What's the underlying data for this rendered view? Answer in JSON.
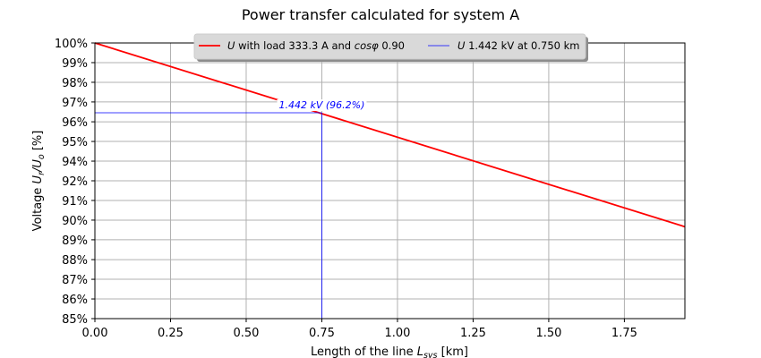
{
  "chart_data": {
    "type": "line",
    "title": "Power transfer calculated for system A",
    "xlabel": "Length of the line L_sys [km]",
    "xlabel_parts": {
      "pre": "Length of the line ",
      "var": "L",
      "sub": "sys",
      "post": " [km]"
    },
    "ylabel": "Voltage U_r/U_o [%]",
    "ylabel_parts": {
      "pre": "Voltage ",
      "var1": "U",
      "sub1": "r",
      "slash": "/",
      "var2": "U",
      "sub2": "o",
      "post": " [%]"
    },
    "xlim": [
      0.0,
      1.95
    ],
    "ylim": [
      85,
      100
    ],
    "grid": true,
    "x_ticks": [
      0.0,
      0.25,
      0.5,
      0.75,
      1.0,
      1.25,
      1.5,
      1.75
    ],
    "x_tick_labels": [
      "0.00",
      "0.25",
      "0.50",
      "0.75",
      "1.00",
      "1.25",
      "1.50",
      "1.75"
    ],
    "y_ticks": [
      100,
      98.93,
      97.86,
      96.79,
      95.71,
      94.64,
      93.57,
      92.5,
      91.43,
      90.36,
      89.29,
      88.21,
      87.14,
      86.07,
      85
    ],
    "y_tick_labels": [
      "100%",
      "99%",
      "98%",
      "97%",
      "96%",
      "95%",
      "94%",
      "92%",
      "91%",
      "90%",
      "89%",
      "88%",
      "87%",
      "86%",
      "85%"
    ],
    "series": [
      {
        "name": "U with load 333.3 A and cosφ 0.90",
        "color": "#ff0000",
        "x": [
          0.0,
          1.95
        ],
        "y": [
          100.0,
          90.0
        ]
      },
      {
        "name": "U 1.442 kV at 0.750 km",
        "color": "#0000ff",
        "type": "crosshair",
        "x": 0.75,
        "y": 96.2
      }
    ],
    "legend": {
      "position": "upper center",
      "entries": [
        {
          "var": "U",
          "text": " with load 333.3 A and ",
          "var2": "cosφ",
          "text2": " 0.90",
          "color": "#ff0000"
        },
        {
          "var": "U",
          "text": " 1.442 kV at 0.750 km",
          "color": "#0000ff"
        }
      ]
    },
    "annotations": [
      {
        "text": "1.442 kV (96.2%)",
        "x": 0.75,
        "y": 96.2,
        "color": "#0000ff"
      }
    ]
  }
}
